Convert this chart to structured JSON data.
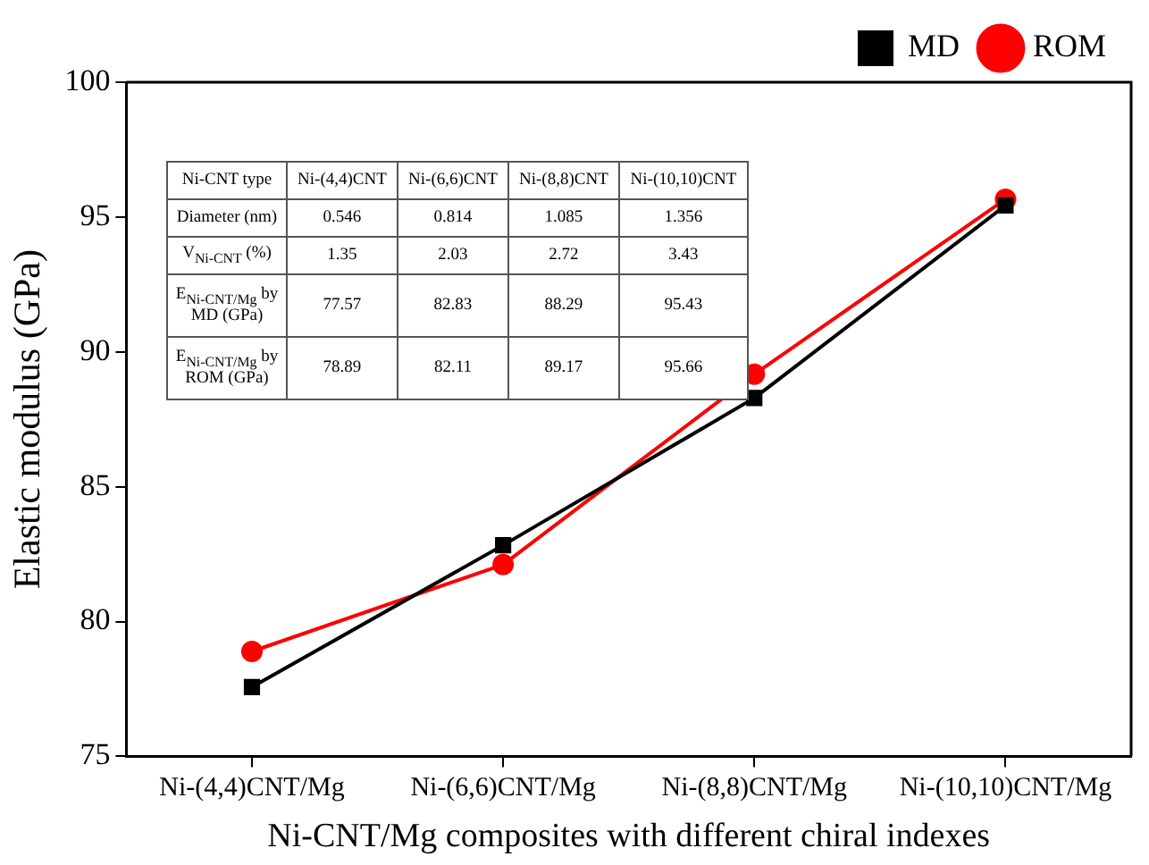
{
  "chart_data": {
    "type": "line",
    "xlabel": "Ni-CNT/Mg composites with different chiral indexes",
    "ylabel": "Elastic modulus (GPa)",
    "categories": [
      "Ni-(4,4)CNT/Mg",
      "Ni-(6,6)CNT/Mg",
      "Ni-(8,8)CNT/Mg",
      "Ni-(10,10)CNT/Mg"
    ],
    "series": [
      {
        "name": "MD",
        "color": "#000000",
        "marker": "square",
        "values": [
          77.57,
          82.83,
          88.29,
          95.43
        ]
      },
      {
        "name": "ROM",
        "color": "#ff0000",
        "marker": "circle",
        "values": [
          78.89,
          82.11,
          89.17,
          95.66
        ]
      }
    ],
    "ylim": [
      75,
      100
    ],
    "yticks": [
      75,
      80,
      85,
      90,
      95,
      100
    ],
    "grid": false,
    "legend": "top right",
    "line_style": "solid",
    "annotations": [
      "Ni-CNT type",
      "Ni-(4,4)CNT",
      "Ni-(6,6)CNT",
      "Ni-(8,8)CNT",
      "Ni-(10,10)CNT",
      "Diameter (nm)",
      "0.546",
      "0.814",
      "1.085",
      "1.356",
      "V$_{Ni-CNT}$ (%)",
      "1.35",
      "2.03",
      "2.72",
      "3.43",
      "E$_{Ni-CNT/Mg}$ by MD (GPa)",
      "77.57",
      "82.83",
      "88.29",
      "95.43",
      "E$_{Ni-CNT/Mg}$ by ROM (GPa)",
      "78.89",
      "82.11",
      "89.17",
      "95.66"
    ]
  }
}
